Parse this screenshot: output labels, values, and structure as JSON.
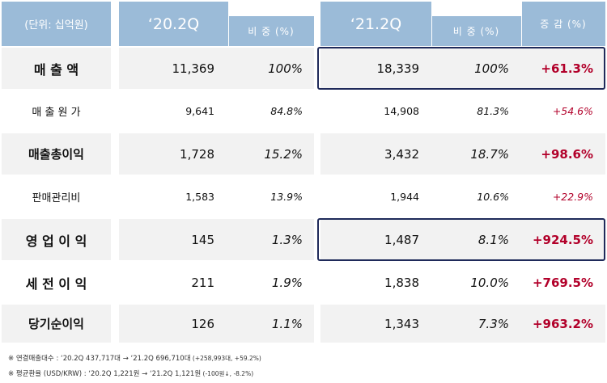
{
  "header": {
    "unit": "(단위: 십억원)",
    "period_prev": "‘20.2Q",
    "share_prev": "비 중 (%)",
    "period_curr": "‘21.2Q",
    "share_curr": "비 중 (%)",
    "change": "증 감 (%)"
  },
  "rows": [
    {
      "label": "매 출 액",
      "prev": "11,369",
      "prev_share": "100%",
      "curr": "18,339",
      "curr_share": "100%",
      "change": "+61.3%"
    },
    {
      "label": "매 출 원 가",
      "prev": "9,641",
      "prev_share": "84.8%",
      "curr": "14,908",
      "curr_share": "81.3%",
      "change": "+54.6%"
    },
    {
      "label": "매출총이익",
      "prev": "1,728",
      "prev_share": "15.2%",
      "curr": "3,432",
      "curr_share": "18.7%",
      "change": "+98.6%"
    },
    {
      "label": "판매관리비",
      "prev": "1,583",
      "prev_share": "13.9%",
      "curr": "1,944",
      "curr_share": "10.6%",
      "change": "+22.9%"
    },
    {
      "label": "영 업 이 익",
      "prev": "145",
      "prev_share": "1.3%",
      "curr": "1,487",
      "curr_share": "8.1%",
      "change": "+924.5%"
    },
    {
      "label": "세 전 이 익",
      "prev": "211",
      "prev_share": "1.9%",
      "curr": "1,838",
      "curr_share": "10.0%",
      "change": "+769.5%"
    },
    {
      "label": "당기순이익",
      "prev": "126",
      "prev_share": "1.1%",
      "curr": "1,343",
      "curr_share": "7.3%",
      "change": "+963.2%"
    }
  ],
  "notes": [
    {
      "main": "※  연결매출대수 : ‘20.2Q 437,717대  →  ‘21.2Q 696,710대",
      "small": " (+258,993대, +59.2%)"
    },
    {
      "main": "※  평균환율 (USD/KRW) : ‘20.2Q 1,221원  →  ‘21.2Q 1,121원",
      "small": " (-100원↓, -8.2%)"
    }
  ]
}
